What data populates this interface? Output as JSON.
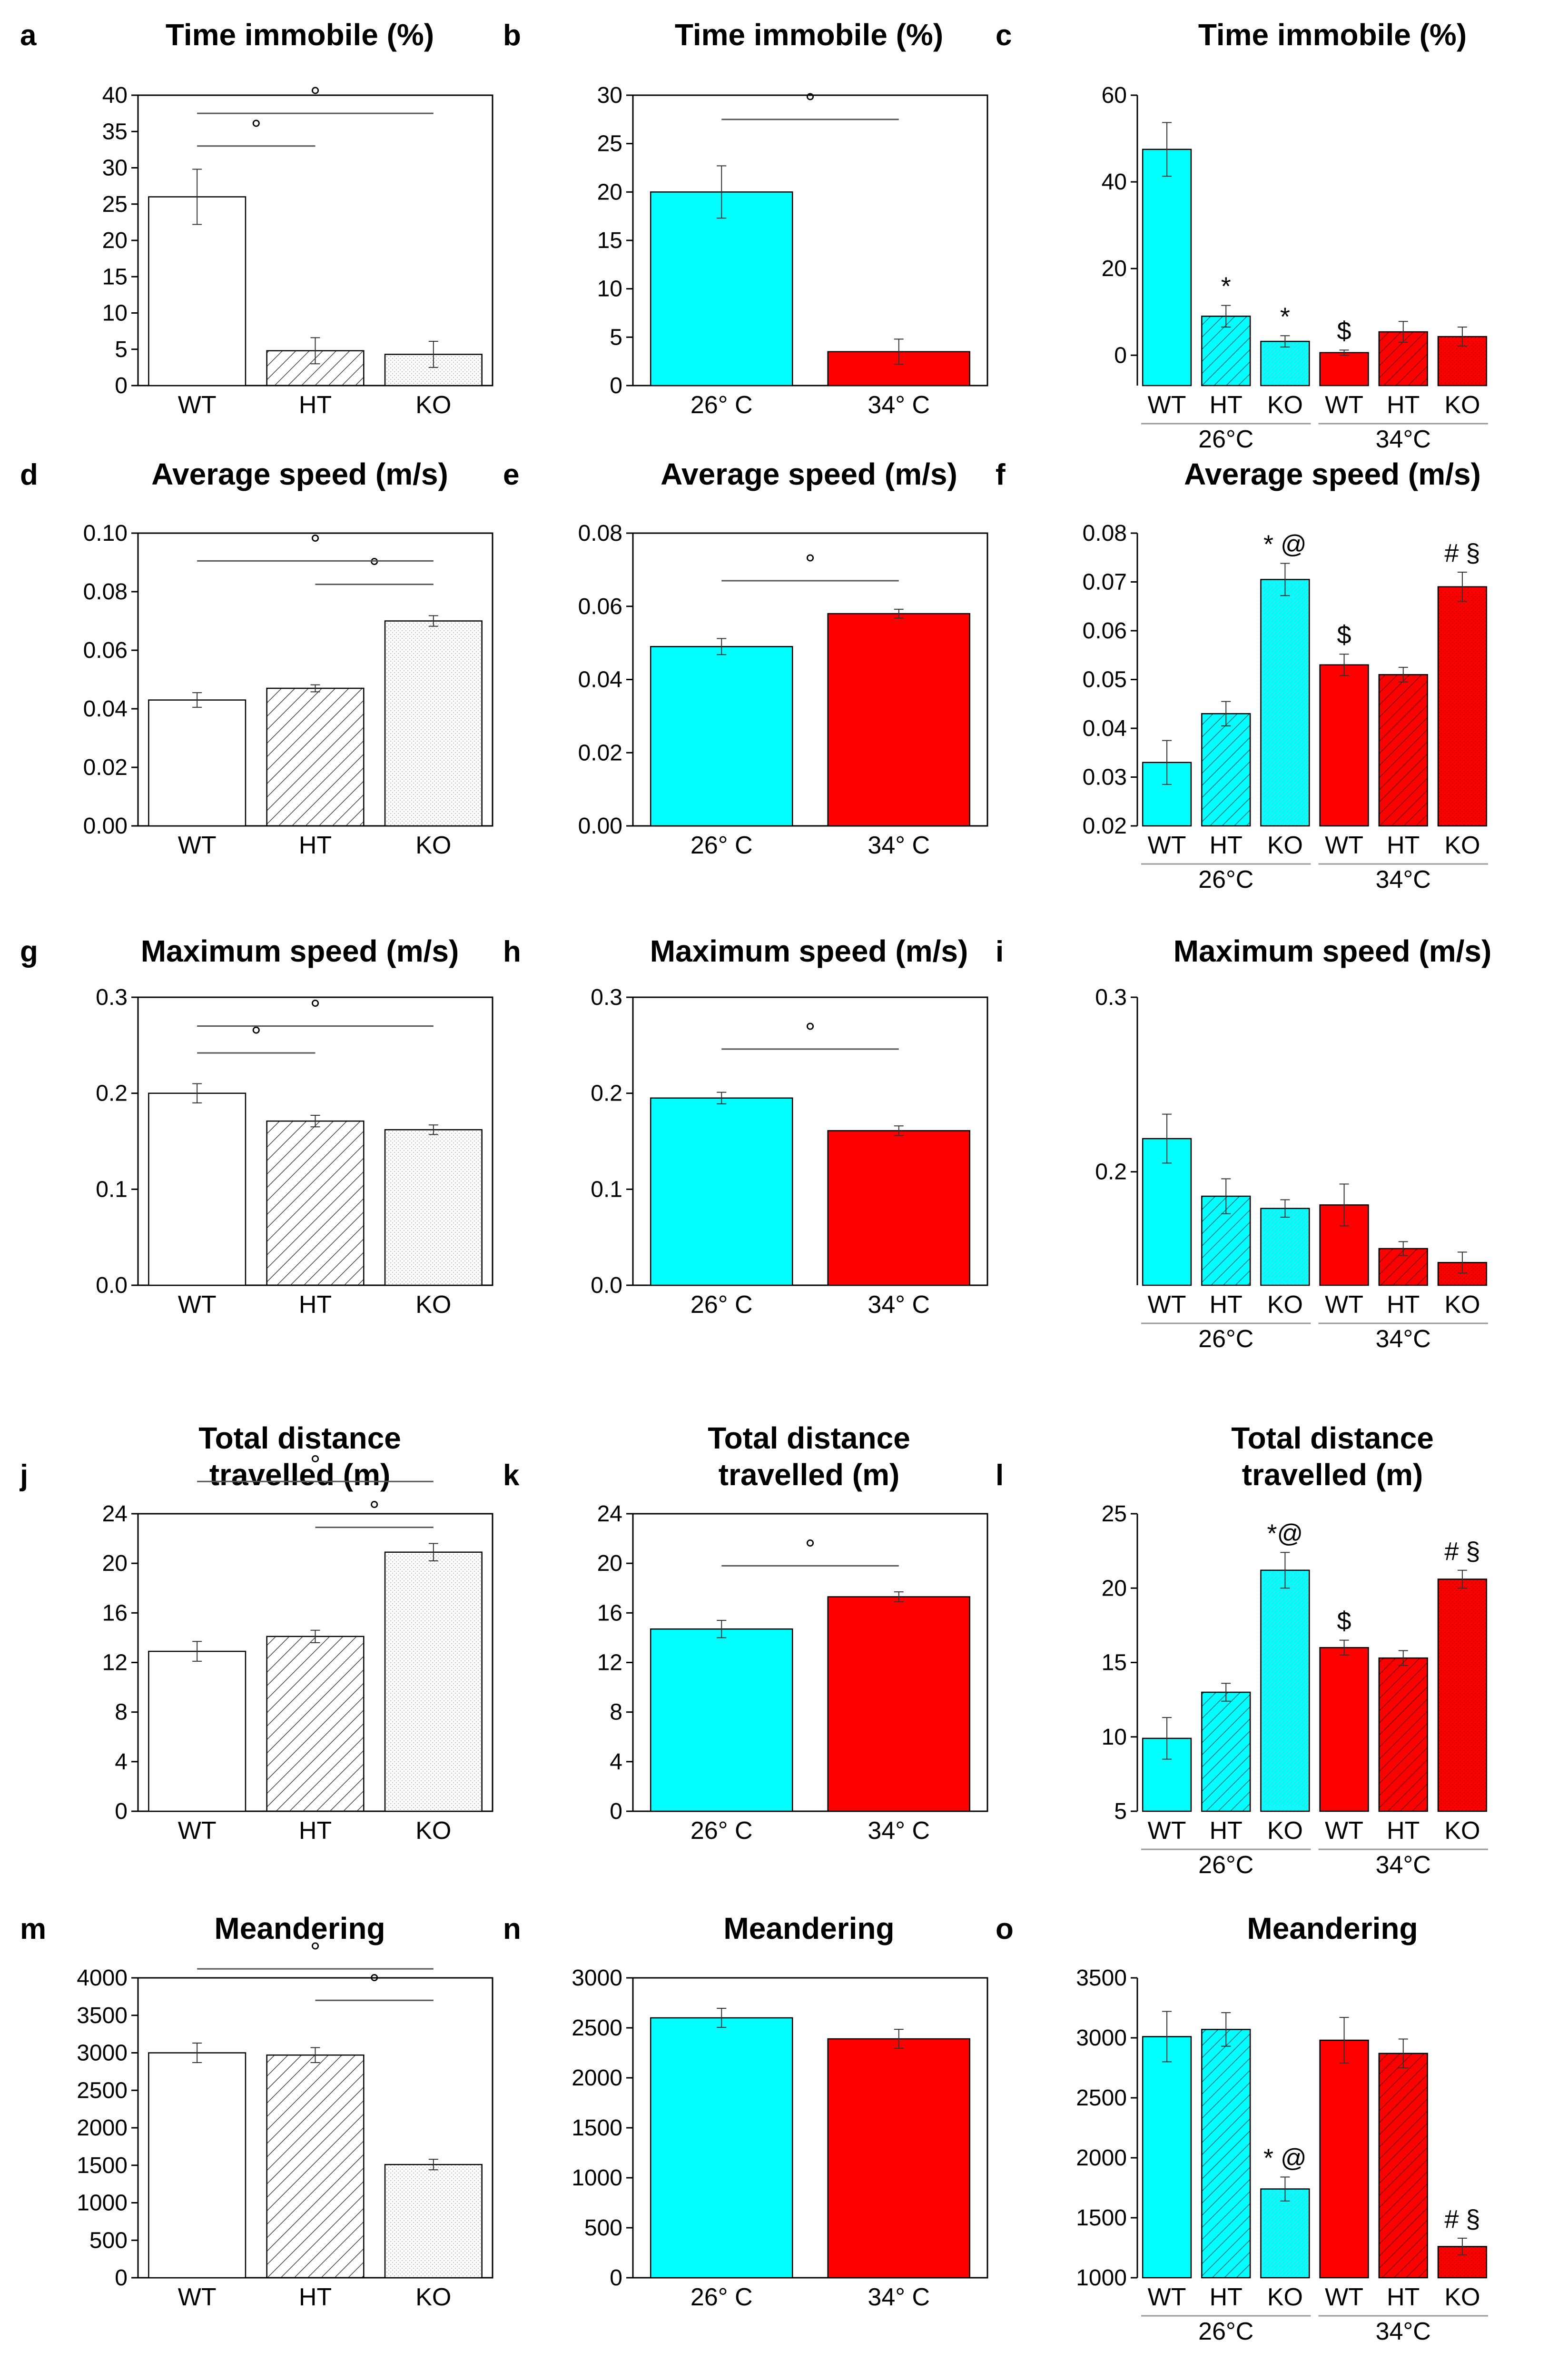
{
  "colors": {
    "cold": "#00ffff",
    "hot": "#ff0000",
    "white": "#ffffff",
    "stroke": "#000000"
  },
  "chart_data": [
    {
      "id": "a",
      "label": "a",
      "type": "bar",
      "title": [
        "Time immobile (%)"
      ],
      "mode": "genotype",
      "categories": [
        "WT",
        "HT",
        "KO"
      ],
      "values": [
        26,
        4.8,
        4.3
      ],
      "errors": [
        3.8,
        1.8,
        1.8
      ],
      "yticks": [
        0,
        5,
        10,
        15,
        20,
        25,
        30,
        35,
        40
      ],
      "ylim": [
        0,
        40
      ],
      "brackets": [
        {
          "from": 0,
          "to": 1,
          "y": 33,
          "mark": "°"
        },
        {
          "from": 0,
          "to": 2,
          "y": 37.5,
          "mark": "°"
        }
      ],
      "annotations": []
    },
    {
      "id": "b",
      "label": "b",
      "type": "bar",
      "title": [
        "Time immobile (%)"
      ],
      "mode": "temp",
      "categories": [
        "26° C",
        "34° C"
      ],
      "values": [
        20,
        3.5
      ],
      "errors": [
        2.7,
        1.3
      ],
      "yticks": [
        0,
        5,
        10,
        15,
        20,
        25,
        30
      ],
      "ylim": [
        0,
        30
      ],
      "brackets": [
        {
          "from": 0,
          "to": 1,
          "y": 27.5,
          "mark": "°"
        }
      ],
      "annotations": []
    },
    {
      "id": "c",
      "label": "c",
      "type": "bar",
      "title": [
        "Time immobile (%)"
      ],
      "mode": "combo",
      "categories": [
        "WT",
        "HT",
        "KO",
        "WT",
        "HT",
        "KO"
      ],
      "groups": [
        "26°C",
        "34°C"
      ],
      "values": [
        47.5,
        9,
        3.2,
        0.6,
        5.4,
        4.3
      ],
      "errors": [
        6.2,
        2.5,
        1.3,
        0.6,
        2.4,
        2.2
      ],
      "yticks": [
        0,
        20,
        40,
        60
      ],
      "ylim": [
        -7,
        60
      ],
      "brackets": [],
      "annotations": [
        {
          "bar": 1,
          "text": "*"
        },
        {
          "bar": 2,
          "text": "*"
        },
        {
          "bar": 3,
          "text": "$"
        }
      ]
    },
    {
      "id": "d",
      "label": "d",
      "type": "bar",
      "title": [
        "Average speed (m/s)"
      ],
      "mode": "genotype",
      "categories": [
        "WT",
        "HT",
        "KO"
      ],
      "values": [
        0.043,
        0.047,
        0.07
      ],
      "errors": [
        0.0025,
        0.0012,
        0.0018
      ],
      "yticks": [
        0.0,
        0.02,
        0.04,
        0.06,
        0.08,
        0.1
      ],
      "ylim": [
        0,
        0.1
      ],
      "decimals": 2,
      "brackets": [
        {
          "from": 1,
          "to": 2,
          "y": 0.0825,
          "mark": "°"
        },
        {
          "from": 0,
          "to": 2,
          "y": 0.0905,
          "mark": "°"
        }
      ],
      "annotations": []
    },
    {
      "id": "e",
      "label": "e",
      "type": "bar",
      "title": [
        "Average speed (m/s)"
      ],
      "mode": "temp",
      "categories": [
        "26° C",
        "34° C"
      ],
      "values": [
        0.049,
        0.058
      ],
      "errors": [
        0.0022,
        0.0012
      ],
      "yticks": [
        0.0,
        0.02,
        0.04,
        0.06,
        0.08
      ],
      "ylim": [
        0,
        0.08
      ],
      "decimals": 2,
      "brackets": [
        {
          "from": 0,
          "to": 1,
          "y": 0.067,
          "mark": "°"
        }
      ],
      "annotations": []
    },
    {
      "id": "f",
      "label": "f",
      "type": "bar",
      "title": [
        "Average speed (m/s)"
      ],
      "mode": "combo",
      "categories": [
        "WT",
        "HT",
        "KO",
        "WT",
        "HT",
        "KO"
      ],
      "groups": [
        "26°C",
        "34°C"
      ],
      "values": [
        0.033,
        0.043,
        0.0705,
        0.053,
        0.051,
        0.069
      ],
      "errors": [
        0.0045,
        0.0025,
        0.0033,
        0.0022,
        0.0015,
        0.003
      ],
      "yticks": [
        0.02,
        0.03,
        0.04,
        0.05,
        0.06,
        0.07,
        0.08
      ],
      "ylim": [
        0.02,
        0.08
      ],
      "decimals": 2,
      "brackets": [],
      "annotations": [
        {
          "bar": 2,
          "text": "* @"
        },
        {
          "bar": 3,
          "text": "$"
        },
        {
          "bar": 5,
          "text": "# §"
        }
      ]
    },
    {
      "id": "g",
      "label": "g",
      "type": "bar",
      "title": [
        "Maximum speed (m/s)"
      ],
      "mode": "genotype",
      "categories": [
        "WT",
        "HT",
        "KO"
      ],
      "values": [
        0.2,
        0.171,
        0.162
      ],
      "errors": [
        0.01,
        0.006,
        0.005
      ],
      "yticks": [
        0.0,
        0.1,
        0.2,
        0.3
      ],
      "ylim": [
        0,
        0.3
      ],
      "decimals": 1,
      "brackets": [
        {
          "from": 0,
          "to": 1,
          "y": 0.242,
          "mark": "°"
        },
        {
          "from": 0,
          "to": 2,
          "y": 0.27,
          "mark": "°"
        }
      ],
      "annotations": []
    },
    {
      "id": "h",
      "label": "h",
      "type": "bar",
      "title": [
        "Maximum speed (m/s)"
      ],
      "mode": "temp",
      "categories": [
        "26° C",
        "34° C"
      ],
      "values": [
        0.195,
        0.161
      ],
      "errors": [
        0.006,
        0.005
      ],
      "yticks": [
        0.0,
        0.1,
        0.2,
        0.3
      ],
      "ylim": [
        0,
        0.3
      ],
      "decimals": 1,
      "brackets": [
        {
          "from": 0,
          "to": 1,
          "y": 0.246,
          "mark": "°"
        }
      ],
      "annotations": []
    },
    {
      "id": "i",
      "label": "i",
      "type": "bar",
      "title": [
        "Maximum speed (m/s)"
      ],
      "mode": "combo",
      "categories": [
        "WT",
        "HT",
        "KO",
        "WT",
        "HT",
        "KO"
      ],
      "groups": [
        "26°C",
        "34°C"
      ],
      "values": [
        0.219,
        0.186,
        0.179,
        0.181,
        0.156,
        0.148
      ],
      "errors": [
        0.014,
        0.01,
        0.005,
        0.012,
        0.004,
        0.006
      ],
      "yticks": [
        0.2,
        0.3
      ],
      "ylim": [
        0.135,
        0.3
      ],
      "decimals": 1,
      "brackets": [],
      "annotations": []
    },
    {
      "id": "j",
      "label": "j",
      "type": "bar",
      "title": [
        "Total distance",
        "travelled (m)"
      ],
      "mode": "genotype",
      "categories": [
        "WT",
        "HT",
        "KO"
      ],
      "values": [
        12.9,
        14.1,
        20.9
      ],
      "errors": [
        0.8,
        0.5,
        0.7
      ],
      "yticks": [
        0,
        4,
        8,
        12,
        16,
        20,
        24
      ],
      "ylim": [
        0,
        24
      ],
      "brackets": [
        {
          "from": 1,
          "to": 2,
          "y": 22.9,
          "mark": "°"
        },
        {
          "from": 0,
          "to": 2,
          "y": 26.6,
          "mark": "°"
        }
      ],
      "annotations": []
    },
    {
      "id": "k",
      "label": "k",
      "type": "bar",
      "title": [
        "Total distance",
        "travelled (m)"
      ],
      "mode": "temp",
      "categories": [
        "26° C",
        "34° C"
      ],
      "values": [
        14.7,
        17.3
      ],
      "errors": [
        0.7,
        0.4
      ],
      "yticks": [
        0,
        4,
        8,
        12,
        16,
        20,
        24
      ],
      "ylim": [
        0,
        24
      ],
      "brackets": [
        {
          "from": 0,
          "to": 1,
          "y": 19.8,
          "mark": "°"
        }
      ],
      "annotations": []
    },
    {
      "id": "l",
      "label": "l",
      "type": "bar",
      "title": [
        "Total distance",
        "travelled (m)"
      ],
      "mode": "combo",
      "categories": [
        "WT",
        "HT",
        "KO",
        "WT",
        "HT",
        "KO"
      ],
      "groups": [
        "26°C",
        "34°C"
      ],
      "values": [
        9.9,
        13,
        21.2,
        16,
        15.3,
        20.6
      ],
      "errors": [
        1.4,
        0.6,
        1.2,
        0.5,
        0.5,
        0.6
      ],
      "yticks": [
        5,
        10,
        15,
        20,
        25
      ],
      "ylim": [
        5,
        25
      ],
      "brackets": [],
      "annotations": [
        {
          "bar": 2,
          "text": "*@"
        },
        {
          "bar": 3,
          "text": "$"
        },
        {
          "bar": 5,
          "text": "#  §"
        }
      ]
    },
    {
      "id": "m",
      "label": "m",
      "type": "bar",
      "title": [
        "Meandering"
      ],
      "mode": "genotype",
      "categories": [
        "WT",
        "HT",
        "KO"
      ],
      "values": [
        3000,
        2970,
        1510
      ],
      "errors": [
        130,
        100,
        70
      ],
      "yticks": [
        0,
        500,
        1000,
        1500,
        2000,
        2500,
        3000,
        3500,
        4000
      ],
      "ylim": [
        0,
        4000
      ],
      "brackets": [
        {
          "from": 1,
          "to": 2,
          "y": 3700,
          "mark": "°"
        },
        {
          "from": 0,
          "to": 2,
          "y": 4120,
          "mark": "°"
        }
      ],
      "annotations": []
    },
    {
      "id": "n",
      "label": "n",
      "type": "bar",
      "title": [
        "Meandering"
      ],
      "mode": "temp",
      "categories": [
        "26° C",
        "34° C"
      ],
      "values": [
        2600,
        2390
      ],
      "errors": [
        95,
        95
      ],
      "yticks": [
        0,
        500,
        1000,
        1500,
        2000,
        2500,
        3000
      ],
      "ylim": [
        0,
        3000
      ],
      "brackets": [],
      "annotations": []
    },
    {
      "id": "o",
      "label": "o",
      "type": "bar",
      "title": [
        "Meandering"
      ],
      "mode": "combo",
      "categories": [
        "WT",
        "HT",
        "KO",
        "WT",
        "HT",
        "KO"
      ],
      "groups": [
        "26°C",
        "34°C"
      ],
      "values": [
        3010,
        3070,
        1740,
        2980,
        2870,
        1260
      ],
      "errors": [
        210,
        140,
        100,
        190,
        120,
        70
      ],
      "yticks": [
        1000,
        1500,
        2000,
        2500,
        3000,
        3500
      ],
      "ylim": [
        1000,
        3500
      ],
      "brackets": [],
      "annotations": [
        {
          "bar": 2,
          "text": "* @"
        },
        {
          "bar": 5,
          "text": "# §"
        }
      ]
    }
  ]
}
